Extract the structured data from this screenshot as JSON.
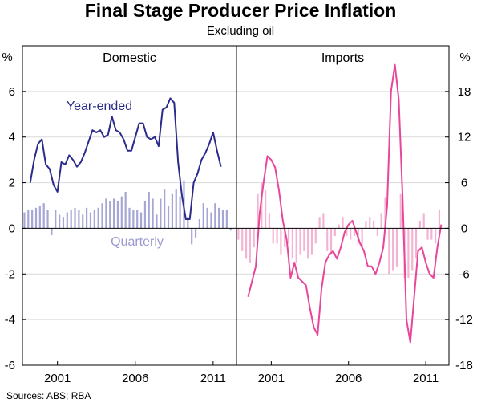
{
  "title": "Final Stage Producer Price Inflation",
  "subtitle": "Excluding oil",
  "source": "Sources: ABS; RBA",
  "colors": {
    "domestic_line": "#2b2b8c",
    "domestic_bar": "#a6a6d6",
    "imports_line": "#e8469a",
    "imports_bar": "#f4b3d2",
    "label_domestic_year": "#2b2b8c",
    "label_domestic_quarterly": "#9a9ad0"
  },
  "chart_data": [
    {
      "type": "bar+line",
      "panel_title": "Domestic",
      "ylabel": "%",
      "ylim": [
        -6,
        8
      ],
      "yticks": [
        -6,
        -4,
        -2,
        0,
        2,
        4,
        6
      ],
      "xlim": [
        1998.75,
        2012.5
      ],
      "xticks": [
        2001,
        2006,
        2011
      ],
      "xtick_labels": [
        "2001",
        "2006",
        "2011"
      ],
      "annotations": {
        "line": "Year-ended",
        "bars": "Quarterly"
      },
      "line_start": 1999.25,
      "line_step": 0.25,
      "line_values": [
        2.0,
        3.0,
        3.7,
        3.9,
        2.8,
        2.6,
        1.9,
        1.6,
        2.9,
        2.8,
        3.2,
        3.0,
        2.7,
        2.9,
        3.3,
        3.8,
        4.3,
        4.2,
        4.3,
        4.0,
        4.1,
        4.9,
        4.3,
        4.2,
        3.9,
        3.4,
        3.4,
        4.0,
        4.6,
        4.6,
        4.0,
        3.9,
        4.0,
        3.6,
        5.2,
        5.3,
        5.7,
        5.5,
        2.9,
        1.4,
        0.4,
        0.4,
        2.0,
        2.4,
        3.0,
        3.3,
        3.7,
        4.2,
        3.4,
        2.7
      ],
      "bar_start": 1998.75,
      "bar_step": 0.25,
      "bar_values": [
        0.7,
        0.8,
        0.8,
        0.9,
        1.0,
        1.1,
        0.8,
        -0.3,
        0.8,
        0.6,
        0.5,
        0.7,
        0.8,
        0.9,
        0.8,
        0.6,
        0.9,
        0.7,
        0.8,
        0.9,
        1.1,
        1.3,
        1.2,
        1.3,
        1.2,
        1.4,
        1.6,
        0.9,
        0.8,
        0.8,
        0.7,
        1.2,
        1.6,
        1.3,
        0.6,
        1.3,
        1.7,
        1.0,
        1.5,
        1.7,
        1.4,
        2.1,
        0.5,
        -0.7,
        -0.4,
        0.4,
        1.1,
        0.9,
        0.7,
        1.1,
        0.9,
        0.8,
        0.8,
        -0.1
      ]
    },
    {
      "type": "bar+line",
      "panel_title": "Imports",
      "ylabel": "%",
      "ylim": [
        -18,
        24
      ],
      "yticks": [
        -18,
        -12,
        -6,
        0,
        6,
        12,
        18
      ],
      "xlim": [
        1998.75,
        2012.5
      ],
      "xticks": [
        2001,
        2006,
        2011
      ],
      "xtick_labels": [
        "2001",
        "2006",
        "2011"
      ],
      "line_start": 1999.5,
      "line_step": 0.25,
      "line_values": [
        -9.0,
        -7.0,
        -5.0,
        2.0,
        6.0,
        9.5,
        9.0,
        8.0,
        5.0,
        1.0,
        -1.5,
        -6.5,
        -4.5,
        -6.5,
        -7.0,
        -7.5,
        -10.5,
        -13.0,
        -14.0,
        -8.0,
        -4.5,
        -3.5,
        -3.0,
        -4.0,
        -2.5,
        -0.5,
        0.5,
        1.0,
        -0.5,
        -2.0,
        -3.0,
        -5.0,
        -5.0,
        -6.0,
        -4.5,
        -2.5,
        3.0,
        18.0,
        21.5,
        17.0,
        4.0,
        -12.0,
        -15.0,
        -9.0,
        -3.0,
        -2.5,
        -4.5,
        -6.0,
        -6.5,
        -2.5,
        0.5
      ],
      "bar_start": 1998.75,
      "bar_step": 0.25,
      "bar_values": [
        -1.5,
        -3.0,
        -4.0,
        -4.5,
        -2.5,
        4.5,
        6.0,
        5.0,
        2.0,
        -2.0,
        -2.0,
        -3.5,
        -2.5,
        -2.0,
        -4.0,
        -4.5,
        -3.5,
        -3.0,
        -4.0,
        -3.5,
        -2.0,
        1.5,
        2.0,
        -3.0,
        -3.5,
        -1.0,
        0.5,
        1.5,
        -1.0,
        -1.5,
        -1.0,
        -2.0,
        -2.5,
        1.0,
        1.5,
        1.0,
        -1.0,
        2.0,
        4.0,
        -6.0,
        -5.5,
        -5.0,
        4.5,
        -6.5,
        -6.5,
        -5.5,
        -4.0,
        1.0,
        2.0,
        -1.5,
        -1.5,
        -2.0,
        2.5
      ]
    }
  ]
}
